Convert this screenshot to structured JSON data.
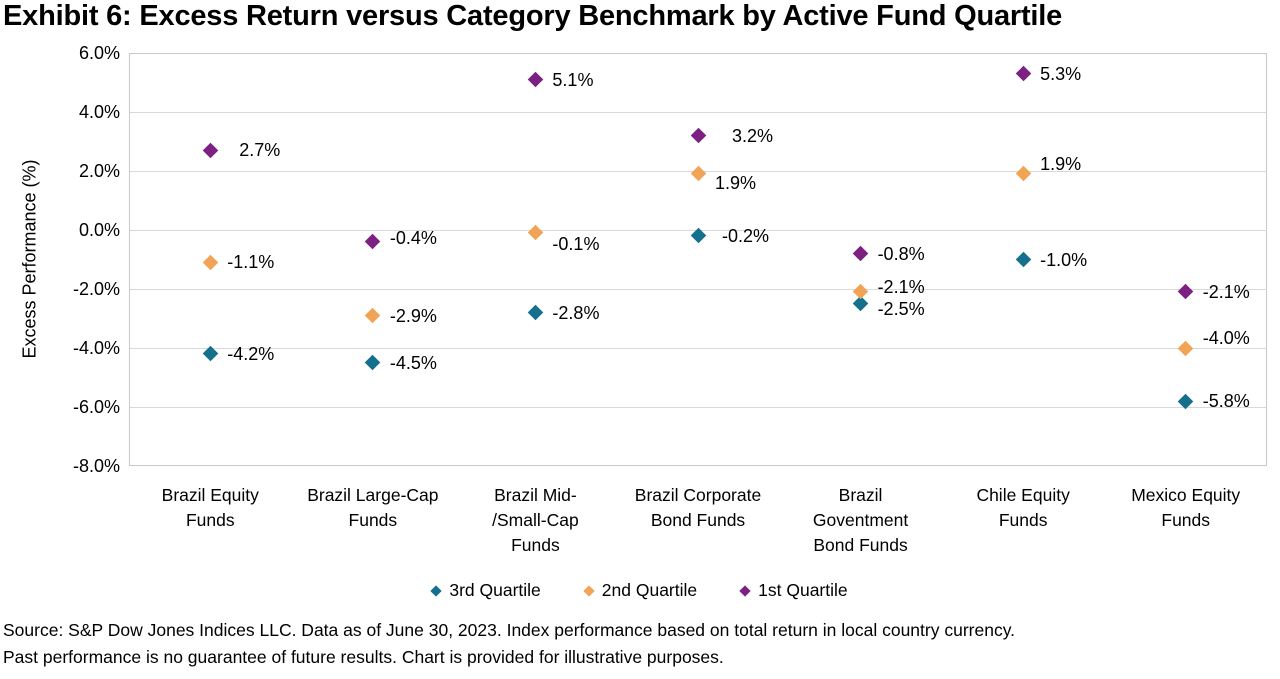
{
  "title": "Exhibit 6: Excess Return versus Category Benchmark by Active Fund Quartile",
  "source": {
    "line1": "Source: S&P Dow Jones Indices LLC. Data as of June 30, 2023. Index performance based on total return in local country currency.",
    "line2": "Past performance is no guarantee of future results. Chart is provided for illustrative purposes."
  },
  "chart_data": {
    "type": "scatter",
    "title": "Exhibit 6: Excess Return versus Category Benchmark by Active Fund Quartile",
    "xlabel": "",
    "ylabel": "Excess Performance (%)",
    "ylim": [
      -8.0,
      6.0
    ],
    "yticks": [
      6.0,
      4.0,
      2.0,
      0.0,
      -2.0,
      -4.0,
      -6.0,
      -8.0
    ],
    "ytick_labels": [
      "6.0%",
      "4.0%",
      "2.0%",
      "0.0%",
      "-2.0%",
      "-4.0%",
      "-6.0%",
      "-8.0%"
    ],
    "grid": true,
    "marker_shape": "diamond",
    "legend_position": "bottom",
    "categories": [
      "Brazil Equity\nFunds",
      "Brazil Large-Cap\nFunds",
      "Brazil Mid-\n/Small-Cap\nFunds",
      "Brazil Corporate\nBond Funds",
      "Brazil\nGoventment\nBond Funds",
      "Chile Equity\nFunds",
      "Mexico Equity\nFunds"
    ],
    "series": [
      {
        "name": "3rd Quartile",
        "color": "#15708E",
        "values": [
          -4.2,
          -4.5,
          -2.8,
          -0.2,
          -2.5,
          -1.0,
          -5.8
        ],
        "labels": [
          "-4.2%",
          "-4.5%",
          "-2.8%",
          "-0.2%",
          "-2.5%",
          "-1.0%",
          "-5.8%"
        ]
      },
      {
        "name": "2nd Quartile",
        "color": "#F2A456",
        "values": [
          -1.1,
          -2.9,
          -0.1,
          1.9,
          -2.1,
          1.9,
          -4.0
        ],
        "labels": [
          "-1.1%",
          "-2.9%",
          "-0.1%",
          "1.9%",
          "-2.1%",
          "1.9%",
          "-4.0%"
        ]
      },
      {
        "name": "1st Quartile",
        "color": "#7C2182",
        "values": [
          2.7,
          -0.4,
          5.1,
          3.2,
          -0.8,
          5.3,
          -2.1
        ],
        "labels": [
          "2.7%",
          "-0.4%",
          "5.1%",
          "3.2%",
          "-0.8%",
          "5.3%",
          "-2.1%"
        ]
      }
    ]
  }
}
